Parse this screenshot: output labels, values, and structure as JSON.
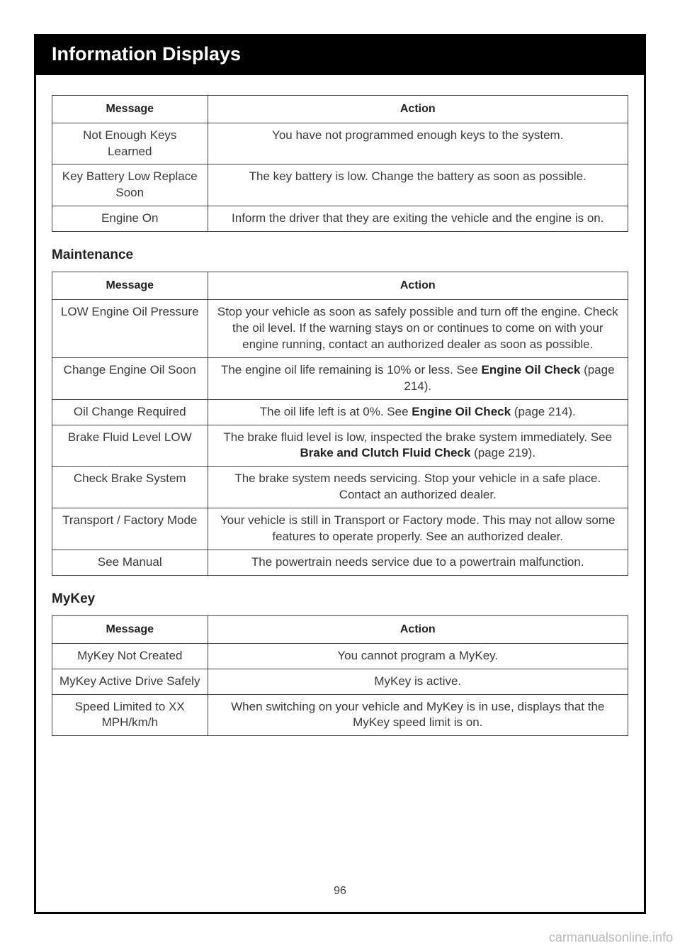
{
  "header": {
    "title": "Information Displays"
  },
  "pageNumber": "96",
  "watermark": "carmanualsonline.info",
  "tables": {
    "columns": {
      "message": "Message",
      "action": "Action"
    }
  },
  "keys": {
    "rows": [
      {
        "msg": "Not Enough Keys Learned",
        "act": "You have not programmed enough keys to the system."
      },
      {
        "msg": "Key Battery Low Replace Soon",
        "act": "The key battery is low. Change the battery as soon as possible."
      },
      {
        "msg": "Engine On",
        "act": "Inform the driver that they are exiting the vehicle and the engine is on."
      }
    ]
  },
  "maintenance": {
    "heading": "Maintenance",
    "rows": [
      {
        "msg": "LOW Engine Oil Pressure",
        "act": "Stop your vehicle as soon as safely possible and turn off the engine. Check the oil level. If the warning stays on or continues to come on with your engine running, contact an authorized dealer as soon as possible."
      },
      {
        "msg": "Change Engine Oil Soon",
        "act_pre": "The engine oil life remaining is 10% or less.  See ",
        "act_bold": "Engine Oil Check",
        "act_post": " (page 214)."
      },
      {
        "msg": "Oil Change Required",
        "act_pre": "The oil life left is at 0%. See ",
        "act_bold": "Engine Oil Check",
        "act_post": " (page 214)."
      },
      {
        "msg": "Brake Fluid Level LOW",
        "act_pre": "The brake fluid level is low, inspected the brake system immediately.  See ",
        "act_bold": "Brake and Clutch Fluid Check",
        "act_post": " (page 219)."
      },
      {
        "msg": "Check Brake System",
        "act": "The brake system needs servicing. Stop your vehicle in a safe place. Contact an authorized dealer."
      },
      {
        "msg": "Transport / Factory Mode",
        "act": "Your vehicle is still in Transport or Factory mode. This may not allow some features to operate properly. See an authorized dealer."
      },
      {
        "msg": "See Manual",
        "act": "The powertrain needs service due to a powertrain malfunction."
      }
    ]
  },
  "mykey": {
    "heading": "MyKey",
    "rows": [
      {
        "msg": "MyKey Not Created",
        "act": "You cannot program a MyKey."
      },
      {
        "msg": "MyKey Active Drive Safely",
        "act": "MyKey is active."
      },
      {
        "msg": "Speed Limited to XX MPH/km/h",
        "act": "When switching on your vehicle and MyKey is in use, displays that the MyKey speed limit is on."
      }
    ]
  }
}
